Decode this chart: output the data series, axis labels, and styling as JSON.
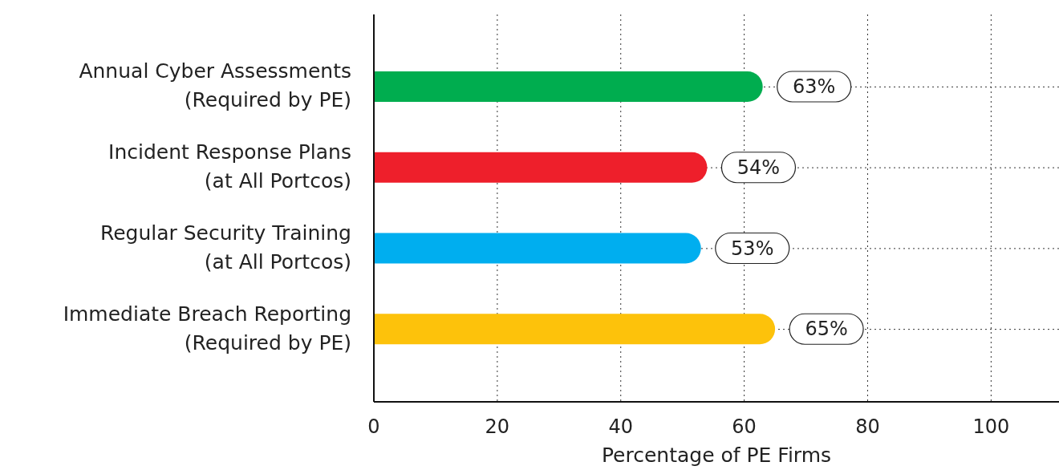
{
  "chart_data": {
    "type": "bar",
    "orientation": "horizontal",
    "xlabel": "Percentage of PE Firms",
    "categories": [
      "Annual Cyber Assessments\n(Required by PE)",
      "Incident Response Plans\n(at All Portcos)",
      "Regular Security Training\n(at All Portcos)",
      "Immediate Breach Reporting\n(Required by PE)"
    ],
    "values": [
      63,
      54,
      53,
      65
    ],
    "colors": [
      "#00ad4f",
      "#ee1f2b",
      "#00aeef",
      "#fdc20b"
    ],
    "value_labels": [
      "63%",
      "54%",
      "53%",
      "65%"
    ],
    "xlim": [
      0,
      111
    ],
    "xticks": [
      0,
      20,
      40,
      60,
      80,
      100
    ],
    "grid": true
  }
}
